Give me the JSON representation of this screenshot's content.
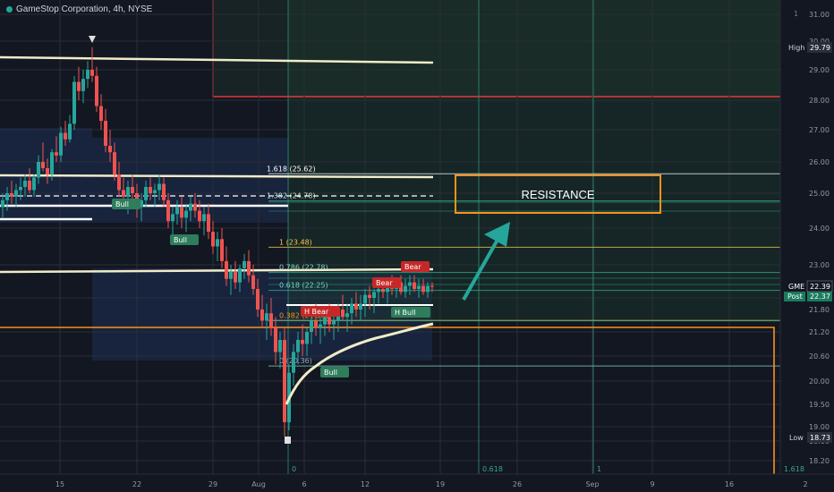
{
  "header": {
    "title": "GameStop Corporation, 4h, NYSE"
  },
  "right_panel": {
    "counter": "1",
    "high_label": "High",
    "high_value": "29.79",
    "low_label": "Low",
    "low_value": "18.73",
    "ticker_label": "GME",
    "ticker_value": "22.39",
    "post_label": "Post",
    "post_value": "22.37",
    "bottom_fib": "1.618"
  },
  "annotation": {
    "resistance_text": "RESISTANCE"
  },
  "colors": {
    "background": "#131722",
    "bull_candle": "#26a69a",
    "bear_candle": "#ef5350",
    "box_outline": "#f7931a",
    "red_box": "#e53935",
    "trend_line": "#f0ecc8",
    "arrow": "#26a69a"
  },
  "chart_data": {
    "type": "candlestick",
    "symbol": "GME",
    "timeframe": "4h",
    "exchange": "NYSE",
    "ylim": [
      17.9,
      31.3
    ],
    "y_ticks": [
      "31.00",
      "30.00",
      "29.00",
      "28.00",
      "27.00",
      "26.00",
      "25.00",
      "24.00",
      "23.00",
      "22.00",
      "21.80",
      "21.20",
      "20.60",
      "20.00",
      "19.50",
      "19.00",
      "18.60",
      "18.20"
    ],
    "x_ticks": [
      "15",
      "22",
      "29",
      "Aug",
      "6",
      "12",
      "19",
      "26",
      "Sep",
      "9",
      "16",
      "2"
    ],
    "fib_labels": [
      {
        "label": "1.618 (25.62)",
        "price": 25.62
      },
      {
        "label": "1.382 (24.78)",
        "price": 24.78
      },
      {
        "label": "1 (23.48)",
        "price": 23.48
      },
      {
        "label": "0.786 (22.78)",
        "price": 22.78
      },
      {
        "label": "0.618 (22.25)",
        "price": 22.25
      },
      {
        "label": "0.382 (21.50)",
        "price": 21.5
      },
      {
        "label": "0 (20.36)",
        "price": 20.36
      }
    ],
    "vertical_fib_labels": [
      "0",
      "0.618",
      "1",
      "1.618"
    ],
    "pattern_labels": [
      "Bull",
      "Bull",
      "Bear",
      "Bear",
      "H Bear",
      "H Bull",
      "Bull"
    ],
    "candles": [
      [
        3,
        24.6,
        25.0,
        24.3,
        24.8
      ],
      [
        8,
        24.8,
        25.2,
        24.5,
        25.0
      ],
      [
        13,
        25.0,
        25.4,
        24.7,
        24.9
      ],
      [
        18,
        24.9,
        25.3,
        24.6,
        25.1
      ],
      [
        23,
        25.1,
        25.5,
        24.8,
        25.2
      ],
      [
        28,
        25.2,
        25.6,
        24.9,
        25.4
      ],
      [
        33,
        25.4,
        25.8,
        25.0,
        25.1
      ],
      [
        38,
        25.1,
        25.6,
        24.9,
        25.5
      ],
      [
        43,
        25.5,
        26.2,
        25.3,
        26.0
      ],
      [
        48,
        26.0,
        26.6,
        25.7,
        25.8
      ],
      [
        53,
        25.8,
        26.1,
        25.3,
        25.6
      ],
      [
        58,
        25.6,
        26.4,
        25.4,
        26.3
      ],
      [
        63,
        26.3,
        26.8,
        26.0,
        26.2
      ],
      [
        68,
        26.2,
        27.1,
        26.0,
        26.9
      ],
      [
        73,
        26.9,
        27.3,
        26.5,
        26.7
      ],
      [
        78,
        26.7,
        27.5,
        26.6,
        27.2
      ],
      [
        83,
        27.2,
        28.8,
        27.0,
        28.6
      ],
      [
        88,
        28.6,
        29.1,
        28.0,
        28.3
      ],
      [
        93,
        28.3,
        29.0,
        27.9,
        28.7
      ],
      [
        98,
        28.7,
        29.3,
        28.4,
        29.0
      ],
      [
        103,
        29.0,
        29.79,
        28.6,
        28.8
      ],
      [
        108,
        28.8,
        29.1,
        27.6,
        27.8
      ],
      [
        113,
        27.8,
        28.2,
        27.0,
        27.3
      ],
      [
        118,
        27.3,
        27.7,
        26.3,
        26.5
      ],
      [
        123,
        26.5,
        27.0,
        26.0,
        26.3
      ],
      [
        128,
        26.3,
        26.6,
        25.4,
        25.6
      ],
      [
        133,
        25.6,
        26.0,
        24.9,
        25.1
      ],
      [
        138,
        25.1,
        25.5,
        24.6,
        24.9
      ],
      [
        143,
        24.9,
        25.4,
        24.4,
        25.2
      ],
      [
        148,
        25.2,
        25.6,
        24.8,
        25.0
      ],
      [
        153,
        25.0,
        25.3,
        24.3,
        24.6
      ],
      [
        158,
        24.6,
        25.0,
        24.2,
        24.8
      ],
      [
        163,
        24.8,
        25.4,
        24.6,
        25.2
      ],
      [
        168,
        25.2,
        25.5,
        24.8,
        25.0
      ],
      [
        173,
        25.0,
        25.3,
        24.6,
        25.1
      ],
      [
        178,
        25.1,
        25.6,
        24.8,
        25.3
      ],
      [
        183,
        25.3,
        25.5,
        24.6,
        24.8
      ],
      [
        188,
        24.8,
        25.0,
        24.0,
        24.2
      ],
      [
        193,
        24.2,
        24.6,
        23.8,
        24.4
      ],
      [
        198,
        24.4,
        24.8,
        24.1,
        24.6
      ],
      [
        203,
        24.6,
        24.9,
        24.0,
        24.3
      ],
      [
        208,
        24.3,
        24.7,
        23.9,
        24.5
      ],
      [
        213,
        24.5,
        24.9,
        24.2,
        24.7
      ],
      [
        218,
        24.7,
        25.0,
        24.3,
        24.5
      ],
      [
        223,
        24.5,
        24.8,
        24.0,
        24.2
      ],
      [
        228,
        24.2,
        24.6,
        23.8,
        24.4
      ],
      [
        233,
        24.4,
        24.7,
        23.7,
        23.9
      ],
      [
        238,
        23.9,
        24.2,
        23.3,
        23.5
      ],
      [
        243,
        23.5,
        23.9,
        23.1,
        23.7
      ],
      [
        248,
        23.7,
        24.0,
        22.9,
        23.1
      ],
      [
        253,
        23.1,
        23.5,
        22.4,
        22.6
      ],
      [
        258,
        22.6,
        23.0,
        22.1,
        22.8
      ],
      [
        263,
        22.8,
        23.1,
        22.3,
        22.5
      ],
      [
        268,
        22.5,
        23.0,
        22.2,
        22.9
      ],
      [
        273,
        22.9,
        23.3,
        22.6,
        23.1
      ],
      [
        278,
        23.1,
        23.4,
        22.5,
        22.7
      ],
      [
        283,
        22.7,
        23.0,
        22.1,
        22.3
      ],
      [
        288,
        22.3,
        22.6,
        21.6,
        21.8
      ],
      [
        293,
        21.8,
        22.1,
        21.3,
        21.5
      ],
      [
        298,
        21.5,
        21.9,
        21.0,
        21.7
      ],
      [
        303,
        21.7,
        22.0,
        21.1,
        21.3
      ],
      [
        308,
        21.3,
        21.6,
        20.4,
        20.7
      ],
      [
        313,
        20.7,
        21.2,
        20.3,
        21.0
      ],
      [
        318,
        21.0,
        21.3,
        18.73,
        19.1
      ],
      [
        323,
        19.1,
        20.4,
        18.9,
        20.2
      ],
      [
        328,
        20.2,
        20.9,
        19.9,
        20.7
      ],
      [
        333,
        20.7,
        21.2,
        20.4,
        21.0
      ],
      [
        338,
        21.0,
        21.4,
        20.6,
        20.9
      ],
      [
        343,
        20.9,
        21.3,
        20.6,
        21.2
      ],
      [
        348,
        21.2,
        21.7,
        20.9,
        21.5
      ],
      [
        353,
        21.5,
        21.9,
        21.1,
        21.3
      ],
      [
        358,
        21.3,
        21.6,
        20.9,
        21.4
      ],
      [
        363,
        21.4,
        21.8,
        21.1,
        21.6
      ],
      [
        368,
        21.6,
        21.9,
        21.2,
        21.4
      ],
      [
        373,
        21.4,
        21.7,
        21.0,
        21.5
      ],
      [
        378,
        21.5,
        21.9,
        21.2,
        21.8
      ],
      [
        383,
        21.8,
        22.1,
        21.5,
        21.6
      ],
      [
        388,
        21.6,
        21.9,
        21.2,
        21.7
      ],
      [
        393,
        21.7,
        22.0,
        21.4,
        21.9
      ],
      [
        398,
        21.9,
        22.2,
        21.6,
        21.8
      ],
      [
        403,
        21.8,
        22.1,
        21.5,
        21.9
      ],
      [
        408,
        21.9,
        22.3,
        21.6,
        22.1
      ],
      [
        413,
        22.1,
        22.4,
        21.8,
        22.0
      ],
      [
        418,
        22.0,
        22.3,
        21.7,
        22.2
      ],
      [
        423,
        22.2,
        22.5,
        21.9,
        22.3
      ],
      [
        428,
        22.3,
        22.6,
        22.0,
        22.2
      ],
      [
        433,
        22.2,
        22.5,
        21.9,
        22.4
      ],
      [
        438,
        22.4,
        22.7,
        22.1,
        22.3
      ],
      [
        443,
        22.3,
        22.6,
        22.0,
        22.5
      ],
      [
        448,
        22.5,
        22.7,
        22.1,
        22.2
      ],
      [
        453,
        22.2,
        22.6,
        22.0,
        22.4
      ],
      [
        458,
        22.4,
        22.7,
        22.1,
        22.5
      ],
      [
        463,
        22.5,
        22.7,
        22.2,
        22.3
      ],
      [
        468,
        22.3,
        22.6,
        22.0,
        22.4
      ],
      [
        473,
        22.4,
        22.6,
        22.1,
        22.2
      ],
      [
        478,
        22.2,
        22.5,
        22.0,
        22.4
      ],
      [
        483,
        22.4,
        22.5,
        22.2,
        22.39
      ]
    ]
  }
}
